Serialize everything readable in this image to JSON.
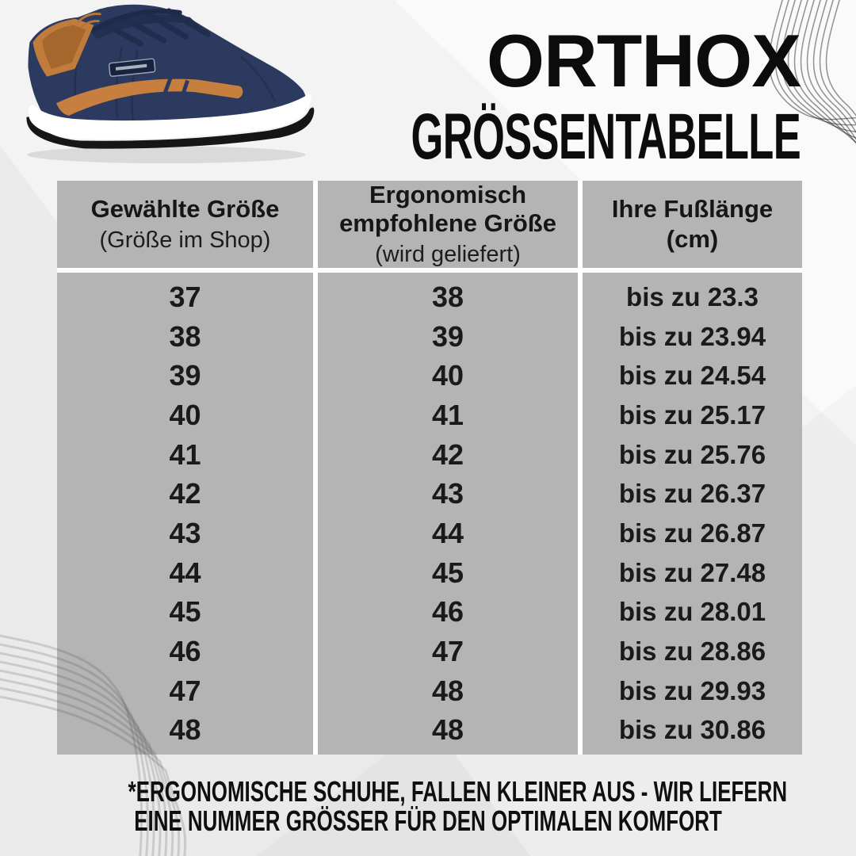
{
  "title": {
    "line1": "ORTHOX",
    "line2": "GRÖSSENTABELLE"
  },
  "size_table": {
    "columns": [
      {
        "title": "Gewählte Größe",
        "subtitle": "(Größe im Shop)"
      },
      {
        "title": "Ergonomisch empfohlene Größe",
        "subtitle": "(wird geliefert)"
      },
      {
        "title": "Ihre Fußlänge",
        "subtitle": "(cm)"
      }
    ],
    "rows": [
      [
        "37",
        "38",
        "bis zu 23.3"
      ],
      [
        "38",
        "39",
        "bis zu 23.94"
      ],
      [
        "39",
        "40",
        "bis zu 24.54"
      ],
      [
        "40",
        "41",
        "bis zu 25.17"
      ],
      [
        "41",
        "42",
        "bis zu 25.76"
      ],
      [
        "42",
        "43",
        "bis zu 26.37"
      ],
      [
        "43",
        "44",
        "bis zu 26.87"
      ],
      [
        "44",
        "45",
        "bis zu 27.48"
      ],
      [
        "45",
        "46",
        "bis zu 28.01"
      ],
      [
        "46",
        "47",
        "bis zu 28.86"
      ],
      [
        "47",
        "48",
        "bis zu 29.93"
      ],
      [
        "48",
        "48",
        "bis zu 30.86"
      ]
    ]
  },
  "footnote": {
    "line1": "*ERGONOMISCHE SCHUHE, FALLEN KLEINER AUS - WIR LIEFERN",
    "line2": "EINE NUMMER GRÖSSER FÜR DEN OPTIMALEN KOMFORT"
  },
  "colors": {
    "table_cell_gray": "#b4b4b4",
    "background": "#f3f3f4",
    "text_black": "#0c0c0c",
    "shoe_navy": "#2b3a5e",
    "shoe_tan": "#c07c3d",
    "sole_white": "#ffffff",
    "outsole_black": "#161616"
  }
}
